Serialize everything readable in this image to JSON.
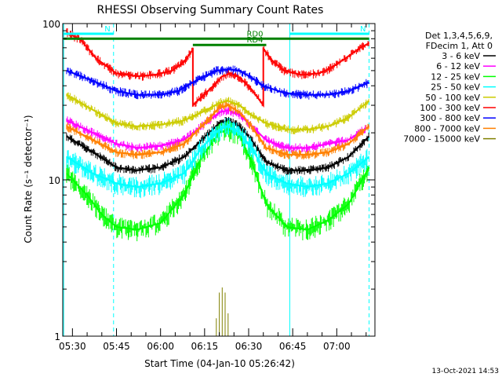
{
  "chart_data": {
    "type": "line",
    "title": "RHESSI Observing Summary Count Rates",
    "xlabel": "Start Time (04-Jan-10 05:26:42)",
    "ylabel": "Count Rate (s⁻¹ detector⁻¹)",
    "yscale": "log",
    "ylim": [
      1,
      100
    ],
    "xlim": [
      "05:26:42",
      "07:13:00"
    ],
    "x_ticks": [
      "05:30",
      "05:45",
      "06:00",
      "06:15",
      "06:30",
      "06:45",
      "07:00"
    ],
    "y_ticks": [
      {
        "value": 1,
        "label": "1"
      },
      {
        "value": 10,
        "label": "10"
      },
      {
        "value": 100,
        "label": "100"
      }
    ],
    "legend_header": [
      "Det 1,3,4,5,6,9,",
      "FDecim 1, Att 0"
    ],
    "legend_position": "right",
    "series": [
      {
        "name": "3 - 6 keV",
        "color": "#000000",
        "points": [
          [
            "05:28",
            19
          ],
          [
            "05:37",
            15
          ],
          [
            "05:45",
            12
          ],
          [
            "05:52",
            11.5
          ],
          [
            "06:00",
            12
          ],
          [
            "06:08",
            14
          ],
          [
            "06:14",
            18
          ],
          [
            "06:20",
            23
          ],
          [
            "06:23",
            24
          ],
          [
            "06:27",
            22
          ],
          [
            "06:31",
            18
          ],
          [
            "06:36",
            13
          ],
          [
            "06:43",
            11.5
          ],
          [
            "06:50",
            11.5
          ],
          [
            "06:57",
            12
          ],
          [
            "07:04",
            14
          ],
          [
            "07:11",
            19
          ]
        ]
      },
      {
        "name": "6 - 12 keV",
        "color": "#ff00ff",
        "points": [
          [
            "05:28",
            24
          ],
          [
            "05:37",
            20
          ],
          [
            "05:45",
            17
          ],
          [
            "05:52",
            16
          ],
          [
            "06:00",
            16.5
          ],
          [
            "06:08",
            18
          ],
          [
            "06:14",
            22
          ],
          [
            "06:20",
            27
          ],
          [
            "06:23",
            28
          ],
          [
            "06:27",
            26
          ],
          [
            "06:31",
            22
          ],
          [
            "06:36",
            18
          ],
          [
            "06:43",
            16
          ],
          [
            "06:50",
            16
          ],
          [
            "06:57",
            17
          ],
          [
            "07:04",
            18
          ],
          [
            "07:11",
            22
          ]
        ]
      },
      {
        "name": "12 - 25 keV",
        "color": "#00ff00",
        "points": [
          [
            "05:28",
            11
          ],
          [
            "05:35",
            8
          ],
          [
            "05:40",
            6
          ],
          [
            "05:45",
            5
          ],
          [
            "05:52",
            4.8
          ],
          [
            "06:00",
            5.3
          ],
          [
            "06:08",
            8
          ],
          [
            "06:14",
            14
          ],
          [
            "06:20",
            20
          ],
          [
            "06:23",
            21
          ],
          [
            "06:27",
            19
          ],
          [
            "06:31",
            13
          ],
          [
            "06:36",
            7
          ],
          [
            "06:43",
            5
          ],
          [
            "06:50",
            4.8
          ],
          [
            "06:57",
            5.5
          ],
          [
            "07:04",
            7
          ],
          [
            "07:11",
            12
          ]
        ]
      },
      {
        "name": "25 - 50 keV",
        "color": "#00ffff",
        "points": [
          [
            "05:28",
            14
          ],
          [
            "05:37",
            11
          ],
          [
            "05:45",
            9.5
          ],
          [
            "05:52",
            9
          ],
          [
            "06:00",
            9.5
          ],
          [
            "06:08",
            11
          ],
          [
            "06:14",
            16
          ],
          [
            "06:20",
            21
          ],
          [
            "06:23",
            22
          ],
          [
            "06:27",
            20
          ],
          [
            "06:31",
            16
          ],
          [
            "06:36",
            11
          ],
          [
            "06:43",
            9.5
          ],
          [
            "06:50",
            9
          ],
          [
            "06:57",
            9.5
          ],
          [
            "07:04",
            11
          ],
          [
            "07:11",
            14
          ]
        ]
      },
      {
        "name": "50 - 100 keV",
        "color": "#cccc00",
        "points": [
          [
            "05:28",
            35
          ],
          [
            "05:37",
            28
          ],
          [
            "05:45",
            23
          ],
          [
            "05:52",
            22
          ],
          [
            "06:00",
            22.5
          ],
          [
            "06:08",
            24
          ],
          [
            "06:14",
            27
          ],
          [
            "06:20",
            31
          ],
          [
            "06:23",
            32
          ],
          [
            "06:27",
            30
          ],
          [
            "06:31",
            26
          ],
          [
            "06:36",
            23
          ],
          [
            "06:43",
            21
          ],
          [
            "06:50",
            21
          ],
          [
            "06:57",
            22
          ],
          [
            "07:04",
            25
          ],
          [
            "07:11",
            32
          ]
        ]
      },
      {
        "name": "100 - 300 keV",
        "color": "#ff0000",
        "points": [
          [
            "05:28",
            88
          ],
          [
            "05:33",
            78
          ],
          [
            "05:38",
            60
          ],
          [
            "05:45",
            48
          ],
          [
            "05:52",
            46
          ],
          [
            "05:58",
            47
          ],
          [
            "06:04",
            50
          ],
          [
            "06:08",
            57
          ],
          [
            "06:11",
            68
          ],
          [
            "06:11",
            30
          ],
          [
            "06:14",
            34
          ],
          [
            "06:18",
            40
          ],
          [
            "06:21",
            46
          ],
          [
            "06:24",
            48
          ],
          [
            "06:27",
            45
          ],
          [
            "06:31",
            38
          ],
          [
            "06:35",
            30
          ],
          [
            "06:35",
            69
          ],
          [
            "06:38",
            58
          ],
          [
            "06:42",
            50
          ],
          [
            "06:48",
            47
          ],
          [
            "06:54",
            48
          ],
          [
            "06:58",
            52
          ],
          [
            "07:03",
            60
          ],
          [
            "07:08",
            70
          ],
          [
            "07:11",
            75
          ]
        ]
      },
      {
        "name": "300 - 800 keV",
        "color": "#0000ff",
        "points": [
          [
            "05:28",
            50
          ],
          [
            "05:37",
            43
          ],
          [
            "05:45",
            37
          ],
          [
            "05:52",
            35
          ],
          [
            "06:00",
            35
          ],
          [
            "06:06",
            37
          ],
          [
            "06:11",
            42
          ],
          [
            "06:15",
            46
          ],
          [
            "06:19",
            50
          ],
          [
            "06:23",
            51
          ],
          [
            "06:27",
            50
          ],
          [
            "06:31",
            45
          ],
          [
            "06:35",
            40
          ],
          [
            "06:42",
            36
          ],
          [
            "06:50",
            35
          ],
          [
            "06:57",
            35
          ],
          [
            "07:04",
            37
          ],
          [
            "07:11",
            42
          ]
        ]
      },
      {
        "name": "800 - 7000 keV",
        "color": "#ff8000",
        "points": [
          [
            "05:28",
            22
          ],
          [
            "05:37",
            18
          ],
          [
            "05:45",
            15
          ],
          [
            "05:52",
            14.5
          ],
          [
            "06:00",
            15
          ],
          [
            "06:08",
            17
          ],
          [
            "06:14",
            22
          ],
          [
            "06:20",
            29
          ],
          [
            "06:23",
            30
          ],
          [
            "06:27",
            27
          ],
          [
            "06:31",
            22
          ],
          [
            "06:36",
            16
          ],
          [
            "06:43",
            14.5
          ],
          [
            "06:50",
            14.5
          ],
          [
            "06:57",
            15
          ],
          [
            "07:04",
            17
          ],
          [
            "07:11",
            22
          ]
        ]
      },
      {
        "name": "7000 - 15000 keV",
        "color": "#808000",
        "points": [
          [
            "06:19",
            1.3
          ],
          [
            "06:20",
            1.9
          ],
          [
            "06:21",
            2.05
          ],
          [
            "06:22",
            1.9
          ],
          [
            "06:23",
            1.4
          ]
        ]
      }
    ],
    "annotations": [
      {
        "text": "N",
        "color": "#00ffff",
        "start": "05:27",
        "end": "05:44",
        "level": 86
      },
      {
        "text": "N",
        "color": "#00ffff",
        "start": "06:44",
        "end": "07:11",
        "level": 86
      },
      {
        "text": "RD0",
        "color": "#008000",
        "start": "05:27",
        "end": "06:36",
        "level": 80
      },
      {
        "text": "RD4",
        "color": "#008000",
        "start": "06:11",
        "end": "06:36",
        "level": 73
      },
      {
        "text": "",
        "color": "#008000",
        "start": "06:36",
        "end": "07:11",
        "level": 80
      }
    ],
    "vertical_lines": [
      {
        "time": "05:27",
        "color": "#00ffff",
        "style": "solid"
      },
      {
        "time": "05:44",
        "color": "#00ffff",
        "style": "dashed"
      },
      {
        "time": "06:44",
        "color": "#00ffff",
        "style": "solid"
      },
      {
        "time": "07:11",
        "color": "#00ffff",
        "style": "dashed"
      }
    ]
  },
  "footer": {
    "timestamp": "13-Oct-2021 14:53"
  }
}
